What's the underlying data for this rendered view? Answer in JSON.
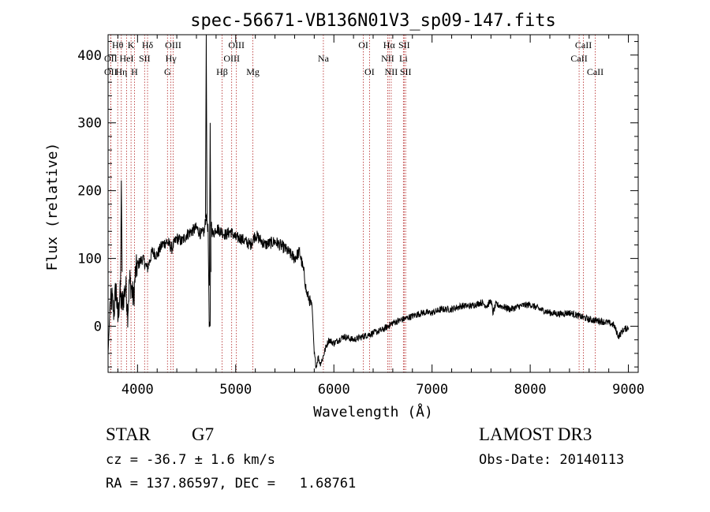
{
  "chart_data": {
    "type": "line",
    "title": "spec-56671-VB136N01V3_sp09-147.fits",
    "xlabel": "Wavelength (Å)",
    "ylabel": "Flux (relative)",
    "xlim": [
      3700,
      9100
    ],
    "ylim": [
      -68,
      430
    ],
    "xticks": [
      4000,
      5000,
      6000,
      7000,
      8000,
      9000
    ],
    "yticks": [
      0,
      100,
      200,
      300,
      400
    ],
    "grid": false,
    "series": [
      {
        "name": "flux",
        "x": [
          3700,
          3720,
          3740,
          3760,
          3780,
          3800,
          3820,
          3840,
          3860,
          3880,
          3900,
          3920,
          3940,
          3960,
          3980,
          4000,
          4050,
          4100,
          4150,
          4200,
          4250,
          4300,
          4350,
          4400,
          4450,
          4500,
          4550,
          4600,
          4650,
          4680,
          4700,
          4720,
          4730,
          4735,
          4740,
          4745,
          4750,
          4760,
          4770,
          4800,
          4850,
          4900,
          4950,
          5000,
          5050,
          5100,
          5150,
          5200,
          5300,
          5400,
          5500,
          5600,
          5650,
          5700,
          5720,
          5750,
          5780,
          5800,
          5820,
          5840,
          5860,
          5880,
          5900,
          5920,
          5950,
          6000,
          6100,
          6200,
          6300,
          6400,
          6500,
          6600,
          6700,
          6800,
          6900,
          7000,
          7100,
          7200,
          7300,
          7400,
          7500,
          7560,
          7600,
          7620,
          7650,
          7700,
          7800,
          7900,
          8000,
          8100,
          8200,
          8300,
          8400,
          8500,
          8600,
          8700,
          8800,
          8850,
          8900,
          8950,
          9000
        ],
        "y": [
          -40,
          30,
          40,
          20,
          60,
          10,
          50,
          30,
          45,
          60,
          20,
          70,
          55,
          40,
          80,
          90,
          100,
          85,
          110,
          105,
          120,
          125,
          115,
          130,
          125,
          135,
          140,
          145,
          135,
          140,
          165,
          140,
          0,
          -2,
          0,
          145,
          155,
          140,
          135,
          145,
          140,
          135,
          140,
          130,
          130,
          125,
          120,
          135,
          120,
          125,
          115,
          100,
          110,
          75,
          50,
          40,
          25,
          -40,
          -60,
          -45,
          -55,
          -50,
          -40,
          -30,
          -20,
          -25,
          -15,
          -20,
          -15,
          -10,
          -5,
          5,
          10,
          15,
          20,
          20,
          25,
          25,
          30,
          30,
          35,
          30,
          38,
          20,
          32,
          30,
          25,
          30,
          32,
          25,
          20,
          18,
          20,
          15,
          10,
          8,
          5,
          2,
          -15,
          -5,
          -2
        ]
      }
    ],
    "spikes": [
      {
        "x": 3835,
        "y": 215
      },
      {
        "x": 4740,
        "y": 300
      }
    ],
    "line_marks": [
      {
        "label": "OII",
        "x": 3727,
        "row": 1
      },
      {
        "label": "OII",
        "x": 3727,
        "row": 2
      },
      {
        "label": "Hθ",
        "x": 3798,
        "row": 0
      },
      {
        "label": "Hη",
        "x": 3835,
        "row": 2
      },
      {
        "label": "HeI",
        "x": 3889,
        "row": 1
      },
      {
        "label": "K",
        "x": 3934,
        "row": 0
      },
      {
        "label": "H",
        "x": 3969,
        "row": 2
      },
      {
        "label": "SII",
        "x": 4072,
        "row": 1
      },
      {
        "label": "Hδ",
        "x": 4102,
        "row": 0
      },
      {
        "label": "Hγ",
        "x": 4340,
        "row": 1
      },
      {
        "label": "G",
        "x": 4305,
        "row": 2
      },
      {
        "label": "OIII",
        "x": 4363,
        "row": 0
      },
      {
        "label": "Hβ",
        "x": 4861,
        "row": 2
      },
      {
        "label": "OIII",
        "x": 4959,
        "row": 1
      },
      {
        "label": "OIII",
        "x": 5007,
        "row": 0
      },
      {
        "label": "Mg",
        "x": 5175,
        "row": 2
      },
      {
        "label": "Na",
        "x": 5893,
        "row": 1
      },
      {
        "label": "OI",
        "x": 6300,
        "row": 0
      },
      {
        "label": "OI",
        "x": 6363,
        "row": 2
      },
      {
        "label": "NII",
        "x": 6548,
        "row": 1
      },
      {
        "label": "Hα",
        "x": 6563,
        "row": 0
      },
      {
        "label": "NII",
        "x": 6584,
        "row": 2
      },
      {
        "label": "Li",
        "x": 6708,
        "row": 1
      },
      {
        "label": "SII",
        "x": 6716,
        "row": 0
      },
      {
        "label": "SII",
        "x": 6731,
        "row": 2
      },
      {
        "label": "CaII",
        "x": 8498,
        "row": 1
      },
      {
        "label": "CaII",
        "x": 8542,
        "row": 0
      },
      {
        "label": "CaII",
        "x": 8662,
        "row": 2
      }
    ]
  },
  "info": {
    "object_class": "STAR",
    "subclass": "G7",
    "survey": "LAMOST DR3",
    "redshift": "cz = -36.7 ± 1.6 km/s",
    "obs_date": "Obs-Date: 20140113",
    "coords": "RA = 137.86597, DEC =   1.68761"
  },
  "colors": {
    "line_mark": "#b22222",
    "spectrum": "#000000",
    "axes": "#000000"
  }
}
